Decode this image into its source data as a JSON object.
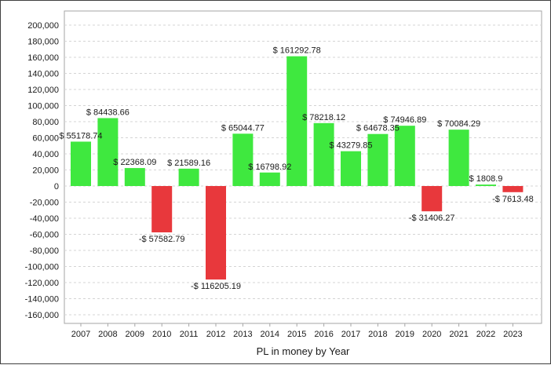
{
  "chart_data": {
    "type": "bar",
    "title": "",
    "xlabel": "PL in money by Year",
    "ylabel": "",
    "ylim": [
      -170000,
      210000
    ],
    "yticks": [
      200000,
      180000,
      160000,
      140000,
      120000,
      100000,
      80000,
      60000,
      40000,
      20000,
      0,
      -20000,
      -40000,
      -60000,
      -80000,
      -100000,
      -120000,
      -140000,
      -160000
    ],
    "ytick_labels": [
      "200,000",
      "180,000",
      "160,000",
      "140,000",
      "120,000",
      "100,000",
      "80,000",
      "60,000",
      "40,000",
      "20,000",
      "0",
      "-20,000",
      "-40,000",
      "-60,000",
      "-80,000",
      "-100,000",
      "-120,000",
      "-140,000",
      "-160,000"
    ],
    "grid": true,
    "legend": "none",
    "categories": [
      "2007",
      "2008",
      "2009",
      "2010",
      "2011",
      "2012",
      "2013",
      "2014",
      "2015",
      "2016",
      "2017",
      "2018",
      "2019",
      "2020",
      "2021",
      "2022",
      "2023"
    ],
    "values": [
      55178.74,
      84438.66,
      22368.09,
      -57582.79,
      21589.16,
      -116205.19,
      65044.77,
      16798.92,
      161292.78,
      78218.12,
      43279.85,
      64678.35,
      74946.89,
      -31406.27,
      70084.29,
      1808.9,
      -7613.48
    ],
    "data_labels": [
      "$ 55178.74",
      "$ 84438.66",
      "$ 22368.09",
      "-$ 57582.79",
      "$ 21589.16",
      "-$ 116205.19",
      "$ 65044.77",
      "$ 16798.92",
      "$ 161292.78",
      "$ 78218.12",
      "$ 43279.85",
      "$ 64678.35",
      "$ 74946.89",
      "-$ 31406.27",
      "$ 70084.29",
      "$ 1808.9",
      "-$ 7613.48"
    ],
    "colors": {
      "positive": "#3fe83f",
      "negative": "#e8383c",
      "grid": "#d4d4d4",
      "axis": "#a6a6a6"
    }
  }
}
